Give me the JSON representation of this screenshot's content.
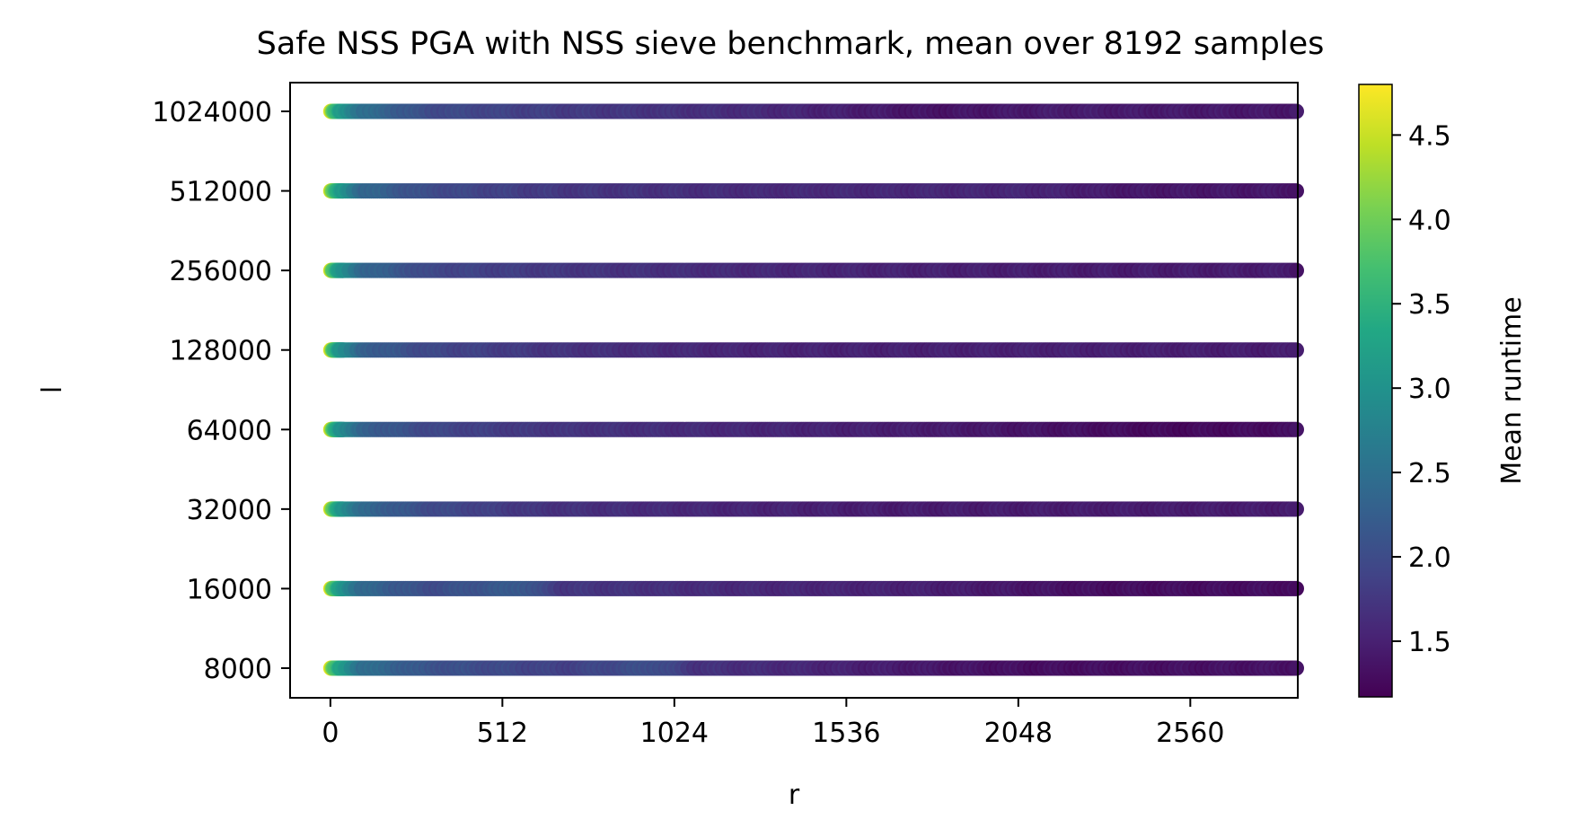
{
  "chart_data": {
    "type": "scatter",
    "title": "Safe NSS PGA with NSS sieve benchmark, mean over 8192 samples",
    "xlabel": "r",
    "ylabel": "l",
    "x_ticks": [
      "0",
      "512",
      "1024",
      "1536",
      "2048",
      "2560"
    ],
    "x_tick_values": [
      0,
      512,
      1024,
      1536,
      2048,
      2560
    ],
    "xlim": [
      -120,
      2880
    ],
    "x_range": [
      1,
      2880
    ],
    "y_categories": [
      "8000",
      "16000",
      "32000",
      "64000",
      "128000",
      "256000",
      "512000",
      "1024000"
    ],
    "colorbar": {
      "label": "Mean runtime",
      "ticks": [
        "1.5",
        "2.0",
        "2.5",
        "3.0",
        "3.5",
        "4.0",
        "4.5"
      ],
      "tick_values": [
        1.5,
        2.0,
        2.5,
        3.0,
        3.5,
        4.0,
        4.5
      ],
      "min": 1.17,
      "max": 4.8,
      "colormap": "viridis"
    },
    "series": [
      {
        "l": "8000",
        "segments": [
          [
            0,
            4.8
          ],
          [
            8,
            4.0
          ],
          [
            30,
            3.3
          ],
          [
            100,
            2.5
          ],
          [
            300,
            2.1
          ],
          [
            700,
            1.85
          ],
          [
            980,
            2.05
          ],
          [
            1100,
            1.7
          ],
          [
            1800,
            1.4
          ],
          [
            2100,
            1.3
          ],
          [
            2880,
            1.35
          ]
        ]
      },
      {
        "l": "16000",
        "segments": [
          [
            0,
            4.8
          ],
          [
            8,
            3.9
          ],
          [
            30,
            3.2
          ],
          [
            100,
            2.4
          ],
          [
            300,
            2.0
          ],
          [
            580,
            2.2
          ],
          [
            700,
            1.75
          ],
          [
            1200,
            1.6
          ],
          [
            1750,
            1.5
          ],
          [
            2300,
            1.3
          ],
          [
            2880,
            1.3
          ]
        ]
      },
      {
        "l": "32000",
        "segments": [
          [
            0,
            4.8
          ],
          [
            8,
            3.9
          ],
          [
            30,
            3.2
          ],
          [
            100,
            2.4
          ],
          [
            300,
            2.0
          ],
          [
            650,
            1.7
          ],
          [
            1200,
            1.55
          ],
          [
            1700,
            1.45
          ],
          [
            2300,
            1.45
          ],
          [
            2880,
            1.45
          ]
        ]
      },
      {
        "l": "64000",
        "segments": [
          [
            0,
            4.8
          ],
          [
            8,
            3.8
          ],
          [
            30,
            3.1
          ],
          [
            100,
            2.3
          ],
          [
            300,
            1.95
          ],
          [
            600,
            1.75
          ],
          [
            1100,
            1.6
          ],
          [
            1800,
            1.45
          ],
          [
            2500,
            1.25
          ],
          [
            2880,
            1.3
          ]
        ]
      },
      {
        "l": "128000",
        "segments": [
          [
            0,
            4.8
          ],
          [
            8,
            3.9
          ],
          [
            30,
            3.1
          ],
          [
            100,
            2.3
          ],
          [
            300,
            1.95
          ],
          [
            700,
            1.7
          ],
          [
            1200,
            1.55
          ],
          [
            1700,
            1.5
          ],
          [
            2300,
            1.5
          ],
          [
            2880,
            1.45
          ]
        ]
      },
      {
        "l": "256000",
        "segments": [
          [
            0,
            4.8
          ],
          [
            8,
            3.9
          ],
          [
            30,
            3.1
          ],
          [
            100,
            2.4
          ],
          [
            300,
            1.95
          ],
          [
            700,
            1.75
          ],
          [
            1200,
            1.6
          ],
          [
            1800,
            1.5
          ],
          [
            2300,
            1.45
          ],
          [
            2880,
            1.45
          ]
        ]
      },
      {
        "l": "512000",
        "segments": [
          [
            0,
            4.8
          ],
          [
            8,
            3.9
          ],
          [
            30,
            3.2
          ],
          [
            100,
            2.4
          ],
          [
            300,
            2.0
          ],
          [
            700,
            1.75
          ],
          [
            1300,
            1.6
          ],
          [
            2100,
            1.55
          ],
          [
            2400,
            1.4
          ],
          [
            2880,
            1.4
          ]
        ]
      },
      {
        "l": "1024000",
        "segments": [
          [
            0,
            4.8
          ],
          [
            8,
            3.9
          ],
          [
            30,
            3.2
          ],
          [
            100,
            2.5
          ],
          [
            300,
            2.0
          ],
          [
            700,
            1.8
          ],
          [
            1300,
            1.6
          ],
          [
            1800,
            1.35
          ],
          [
            2200,
            1.45
          ],
          [
            2880,
            1.4
          ]
        ]
      }
    ]
  }
}
